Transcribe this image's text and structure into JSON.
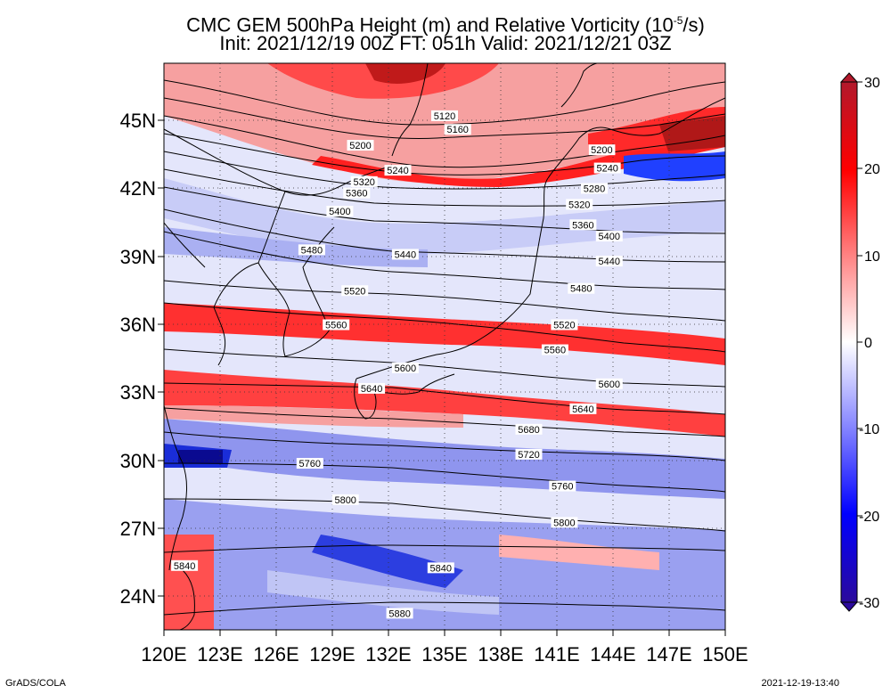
{
  "title": {
    "line1": "CMC GEM 500hPa Height (m) and Relative Vorticity (10",
    "line1_exp": "-5",
    "line1_end": "/s)",
    "line2": "Init: 2021/12/19 00Z  FT: 051h  Valid: 2021/12/21 03Z"
  },
  "axes": {
    "lat_ticks": [
      "45N",
      "42N",
      "39N",
      "36N",
      "33N",
      "30N",
      "27N",
      "24N"
    ],
    "lon_ticks": [
      "120E",
      "123E",
      "126E",
      "129E",
      "132E",
      "135E",
      "138E",
      "141E",
      "144E",
      "147E",
      "150E"
    ]
  },
  "colorbar": {
    "tick_labels": [
      "30",
      "20",
      "10",
      "0",
      "-10",
      "-20",
      "-30"
    ],
    "colors": [
      "#b2182b",
      "#ff0000",
      "#ff8080",
      "#ffffff",
      "#8080ff",
      "#0000ff",
      "#2b0a9c"
    ]
  },
  "contour_labels": [
    {
      "text": "5120",
      "lon": 135.0,
      "lat": 45.2
    },
    {
      "text": "5160",
      "lon": 135.7,
      "lat": 44.6
    },
    {
      "text": "5200",
      "lon": 130.5,
      "lat": 43.9
    },
    {
      "text": "5200",
      "lon": 143.4,
      "lat": 43.7
    },
    {
      "text": "5240",
      "lon": 132.5,
      "lat": 42.8
    },
    {
      "text": "5240",
      "lon": 143.7,
      "lat": 42.9
    },
    {
      "text": "5280",
      "lon": 143.0,
      "lat": 42.0
    },
    {
      "text": "5320",
      "lon": 130.7,
      "lat": 42.3
    },
    {
      "text": "5320",
      "lon": 142.2,
      "lat": 41.3
    },
    {
      "text": "5360",
      "lon": 130.3,
      "lat": 41.8
    },
    {
      "text": "5360",
      "lon": 142.4,
      "lat": 40.4
    },
    {
      "text": "5400",
      "lon": 129.4,
      "lat": 41.0
    },
    {
      "text": "5400",
      "lon": 143.8,
      "lat": 39.9
    },
    {
      "text": "5440",
      "lon": 132.9,
      "lat": 39.1
    },
    {
      "text": "5440",
      "lon": 143.8,
      "lat": 38.8
    },
    {
      "text": "5480",
      "lon": 127.9,
      "lat": 39.3
    },
    {
      "text": "5480",
      "lon": 142.3,
      "lat": 37.6
    },
    {
      "text": "5520",
      "lon": 130.2,
      "lat": 37.5
    },
    {
      "text": "5520",
      "lon": 141.4,
      "lat": 36.0
    },
    {
      "text": "5560",
      "lon": 129.2,
      "lat": 36.0
    },
    {
      "text": "5560",
      "lon": 140.9,
      "lat": 34.9
    },
    {
      "text": "5600",
      "lon": 132.9,
      "lat": 34.1
    },
    {
      "text": "5600",
      "lon": 143.8,
      "lat": 33.4
    },
    {
      "text": "5640",
      "lon": 131.1,
      "lat": 33.2
    },
    {
      "text": "5640",
      "lon": 142.4,
      "lat": 32.3
    },
    {
      "text": "5680",
      "lon": 139.5,
      "lat": 31.4
    },
    {
      "text": "5720",
      "lon": 139.5,
      "lat": 30.3
    },
    {
      "text": "5760",
      "lon": 127.8,
      "lat": 29.9
    },
    {
      "text": "5760",
      "lon": 141.3,
      "lat": 28.9
    },
    {
      "text": "5800",
      "lon": 129.7,
      "lat": 28.3
    },
    {
      "text": "5800",
      "lon": 141.4,
      "lat": 27.3
    },
    {
      "text": "5840",
      "lon": 121.1,
      "lat": 25.4
    },
    {
      "text": "5840",
      "lon": 134.8,
      "lat": 25.3
    },
    {
      "text": "5880",
      "lon": 132.6,
      "lat": 23.3
    }
  ],
  "footer": {
    "left": "GrADS/COLA",
    "right": "2021-12-19-13:40"
  }
}
